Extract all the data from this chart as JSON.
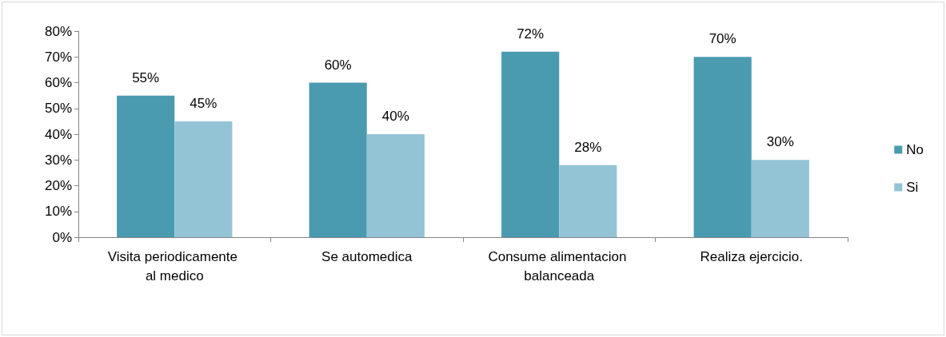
{
  "chart_data": {
    "type": "bar",
    "categories": [
      "Visita periodicamente al medico",
      "Se automedica",
      "Consume alimentacion balanceada",
      "Realiza ejercicio."
    ],
    "series": [
      {
        "name": "No",
        "color": "#4a9bb0",
        "values": [
          55,
          60,
          72,
          70
        ],
        "value_labels": [
          "55%",
          "60%",
          "72%",
          "70%"
        ]
      },
      {
        "name": "Si",
        "color": "#93c4d6",
        "values": [
          45,
          40,
          28,
          30
        ],
        "value_labels": [
          "45%",
          "40%",
          "28%",
          "30%"
        ]
      }
    ],
    "ylim": [
      0,
      80
    ],
    "yticks": [
      {
        "value": 0,
        "label": "0%"
      },
      {
        "value": 10,
        "label": "10%"
      },
      {
        "value": 20,
        "label": "20%"
      },
      {
        "value": 30,
        "label": "30%"
      },
      {
        "value": 40,
        "label": "40%"
      },
      {
        "value": 50,
        "label": "50%"
      },
      {
        "value": 60,
        "label": "60%"
      },
      {
        "value": 70,
        "label": "70%"
      },
      {
        "value": 80,
        "label": "80%"
      }
    ],
    "grid": false,
    "legend": "right"
  }
}
